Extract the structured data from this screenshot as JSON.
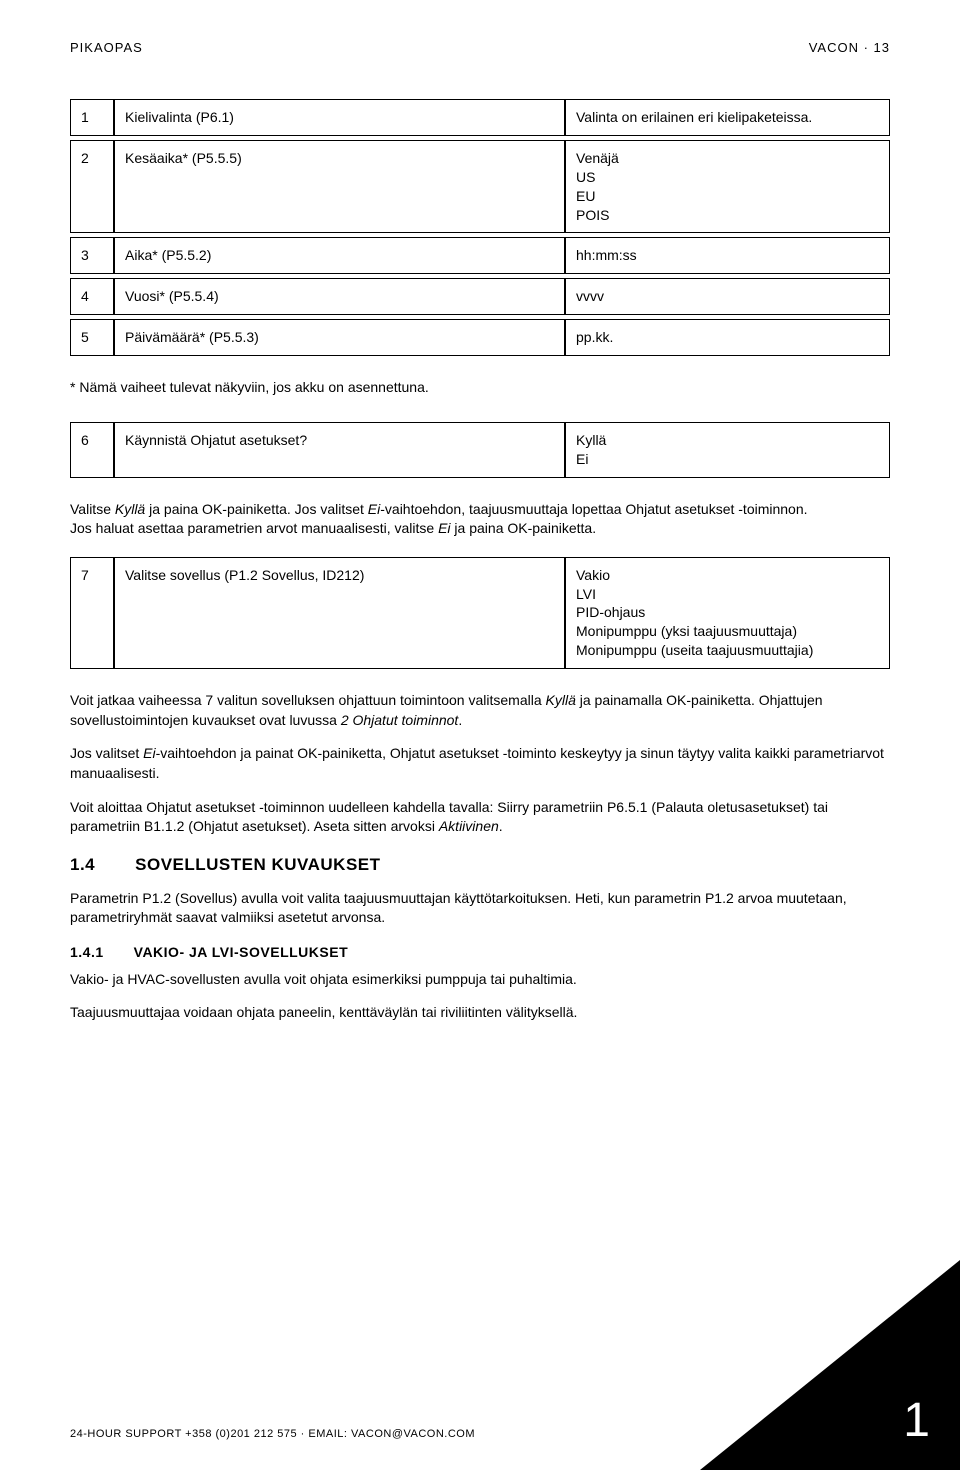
{
  "header": {
    "left": "PIKAOPAS",
    "right": "VACON · 13"
  },
  "table1": {
    "rows": [
      {
        "num": "1",
        "desc": "Kielivalinta (P6.1)",
        "vals": "Valinta on erilainen eri kielipaketeissa."
      },
      {
        "num": "2",
        "desc": "Kesäaika* (P5.5.5)",
        "vals": "Venäjä\nUS\nEU\nPOIS"
      },
      {
        "num": "3",
        "desc": "Aika* (P5.5.2)",
        "vals": "hh:mm:ss"
      },
      {
        "num": "4",
        "desc": "Vuosi* (P5.5.4)",
        "vals": "vvvv"
      },
      {
        "num": "5",
        "desc": "Päivämäärä* (P5.5.3)",
        "vals": "pp.kk."
      }
    ]
  },
  "note1": "* Nämä vaiheet tulevat näkyviin, jos akku on asennettuna.",
  "table2": {
    "rows": [
      {
        "num": "6",
        "desc": "Käynnistä Ohjatut asetukset?",
        "vals": "Kyllä\nEi"
      }
    ]
  },
  "para1a": "Valitse ",
  "para1b": " ja paina OK-painiketta. Jos valitset ",
  "para1c": "-vaihtoehdon, taajuusmuuttaja lopettaa Ohjatut asetukset -toiminnon.",
  "para2a": "Jos haluat asettaa parametrien arvot manuaalisesti, valitse ",
  "para2b": " ja paina OK-painiketta.",
  "italics": {
    "kylla": "Kyllä",
    "ei": "Ei",
    "aktiivinen": "Aktiivinen",
    "ohjatut": "2 Ohjatut toiminnot"
  },
  "table3": {
    "rows": [
      {
        "num": "7",
        "desc": "Valitse sovellus (P1.2 Sovellus, ID212)",
        "vals": "Vakio\nLVI\nPID-ohjaus\nMonipumppu (yksi taajuusmuuttaja)\nMonipumppu (useita taajuusmuuttajia)"
      }
    ]
  },
  "para3a": "Voit jatkaa vaiheessa 7 valitun sovelluksen ohjattuun toimintoon valitsemalla ",
  "para3b": " ja painamalla OK-painiketta. Ohjattujen sovellustoimintojen kuvaukset ovat luvussa ",
  "para3c": ".",
  "para4a": "Jos valitset ",
  "para4b": "-vaihtoehdon ja painat OK-painiketta, Ohjatut asetukset -toiminto keskeytyy ja sinun täytyy valita kaikki parametriarvot manuaalisesti.",
  "para5a": "Voit aloittaa Ohjatut asetukset -toiminnon uudelleen kahdella tavalla: Siirry parametriin P6.5.1 (Palauta oletusasetukset) tai parametriin B1.1.2 (Ohjatut asetukset). Aseta sitten arvoksi ",
  "para5b": ".",
  "section": {
    "num": "1.4",
    "title": "SOVELLUSTEN KUVAUKSET"
  },
  "para6": "Parametrin P1.2 (Sovellus) avulla voit valita taajuusmuuttajan käyttötarkoituksen. Heti, kun parametrin P1.2 arvoa muutetaan, parametriryhmät saavat valmiiksi asetetut arvonsa.",
  "subsection": {
    "num": "1.4.1",
    "title": "VAKIO- JA LVI-SOVELLUKSET"
  },
  "para7": "Vakio- ja HVAC-sovellusten avulla voit ohjata esimerkiksi pumppuja tai puhaltimia.",
  "para8": "Taajuusmuuttajaa voidaan ohjata paneelin, kenttäväylän tai riviliitinten välityksellä.",
  "footer": "24-HOUR SUPPORT +358 (0)201 212 575 · EMAIL: VACON@VACON.COM",
  "chapter": "1"
}
